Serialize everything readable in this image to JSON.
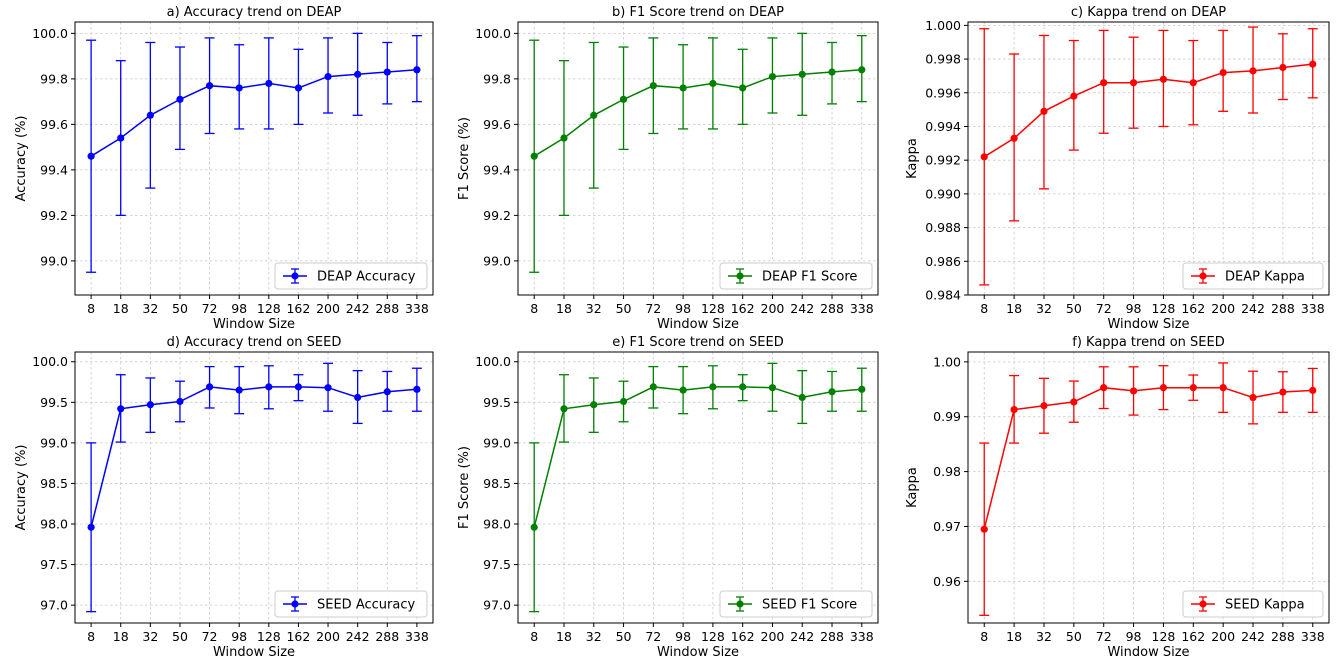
{
  "chart_data": [
    {
      "type": "line",
      "title": "a) Accuracy trend on DEAP",
      "xlabel": "Window Size",
      "ylabel": "Accuracy (%)",
      "categories": [
        "8",
        "18",
        "32",
        "50",
        "72",
        "98",
        "128",
        "162",
        "200",
        "242",
        "288",
        "338"
      ],
      "ylim": [
        98.85,
        100.05
      ],
      "yticks": [
        "99.0",
        "99.2",
        "99.4",
        "99.6",
        "99.8",
        "100.0"
      ],
      "yticks_values": [
        99.0,
        99.2,
        99.4,
        99.6,
        99.8,
        100.0
      ],
      "color": "#0000ff",
      "legend_position": "lower right",
      "grid": true,
      "series": [
        {
          "name": "DEAP Accuracy",
          "values": [
            99.46,
            99.54,
            99.64,
            99.71,
            99.77,
            99.76,
            99.78,
            99.76,
            99.81,
            99.82,
            99.83,
            99.84
          ],
          "lower": [
            98.95,
            99.2,
            99.32,
            99.49,
            99.56,
            99.58,
            99.58,
            99.6,
            99.65,
            99.64,
            99.69,
            99.7
          ],
          "upper": [
            99.97,
            99.88,
            99.96,
            99.94,
            99.98,
            99.95,
            99.98,
            99.93,
            99.98,
            100.0,
            99.96,
            99.99
          ]
        }
      ]
    },
    {
      "type": "line",
      "title": "b) F1 Score trend on DEAP",
      "xlabel": "Window Size",
      "ylabel": "F1 Score (%)",
      "categories": [
        "8",
        "18",
        "32",
        "50",
        "72",
        "98",
        "128",
        "162",
        "200",
        "242",
        "288",
        "338"
      ],
      "ylim": [
        98.85,
        100.05
      ],
      "yticks": [
        "99.0",
        "99.2",
        "99.4",
        "99.6",
        "99.8",
        "100.0"
      ],
      "yticks_values": [
        99.0,
        99.2,
        99.4,
        99.6,
        99.8,
        100.0
      ],
      "color": "#008000",
      "legend_position": "lower right",
      "grid": true,
      "series": [
        {
          "name": "DEAP F1 Score",
          "values": [
            99.46,
            99.54,
            99.64,
            99.71,
            99.77,
            99.76,
            99.78,
            99.76,
            99.81,
            99.82,
            99.83,
            99.84
          ],
          "lower": [
            98.95,
            99.2,
            99.32,
            99.49,
            99.56,
            99.58,
            99.58,
            99.6,
            99.65,
            99.64,
            99.69,
            99.7
          ],
          "upper": [
            99.97,
            99.88,
            99.96,
            99.94,
            99.98,
            99.95,
            99.98,
            99.93,
            99.98,
            100.0,
            99.96,
            99.99
          ]
        }
      ]
    },
    {
      "type": "line",
      "title": "c) Kappa trend on DEAP",
      "xlabel": "Window Size",
      "ylabel": "Kappa",
      "categories": [
        "8",
        "18",
        "32",
        "50",
        "72",
        "98",
        "128",
        "162",
        "200",
        "242",
        "288",
        "338"
      ],
      "ylim": [
        0.984,
        1.0002
      ],
      "yticks": [
        "0.984",
        "0.986",
        "0.988",
        "0.990",
        "0.992",
        "0.994",
        "0.996",
        "0.998",
        "1.000"
      ],
      "yticks_values": [
        0.984,
        0.986,
        0.988,
        0.99,
        0.992,
        0.994,
        0.996,
        0.998,
        1.0
      ],
      "color": "#ff0000",
      "legend_position": "lower right",
      "grid": true,
      "series": [
        {
          "name": "DEAP Kappa",
          "values": [
            0.9922,
            0.9933,
            0.9949,
            0.9958,
            0.9966,
            0.9966,
            0.9968,
            0.9966,
            0.9972,
            0.9973,
            0.9975,
            0.9977
          ],
          "lower": [
            0.9846,
            0.9884,
            0.9903,
            0.9926,
            0.9936,
            0.9939,
            0.994,
            0.9941,
            0.9949,
            0.9948,
            0.9956,
            0.9957
          ],
          "upper": [
            0.9998,
            0.9983,
            0.9994,
            0.9991,
            0.9997,
            0.9993,
            0.9997,
            0.9991,
            0.9997,
            0.9999,
            0.9995,
            0.9998
          ]
        }
      ]
    },
    {
      "type": "line",
      "title": "d) Accuracy trend on SEED",
      "xlabel": "Window Size",
      "ylabel": "Accuracy (%)",
      "categories": [
        "8",
        "18",
        "32",
        "50",
        "72",
        "98",
        "128",
        "162",
        "200",
        "242",
        "288",
        "338"
      ],
      "ylim": [
        96.78,
        100.12
      ],
      "yticks": [
        "97.0",
        "97.5",
        "98.0",
        "98.5",
        "99.0",
        "99.5",
        "100.0"
      ],
      "yticks_values": [
        97.0,
        97.5,
        98.0,
        98.5,
        99.0,
        99.5,
        100.0
      ],
      "color": "#0000ff",
      "legend_position": "lower right",
      "grid": true,
      "series": [
        {
          "name": "SEED Accuracy",
          "values": [
            97.96,
            99.42,
            99.47,
            99.51,
            99.69,
            99.65,
            99.69,
            99.69,
            99.68,
            99.56,
            99.63,
            99.66
          ],
          "lower": [
            96.92,
            99.01,
            99.13,
            99.26,
            99.43,
            99.36,
            99.42,
            99.52,
            99.39,
            99.24,
            99.39,
            99.39
          ],
          "upper": [
            99.0,
            99.84,
            99.8,
            99.76,
            99.94,
            99.94,
            99.95,
            99.84,
            99.98,
            99.89,
            99.88,
            99.92
          ]
        }
      ]
    },
    {
      "type": "line",
      "title": "e) F1 Score trend on SEED",
      "xlabel": "Window Size",
      "ylabel": "F1 Score (%)",
      "categories": [
        "8",
        "18",
        "32",
        "50",
        "72",
        "98",
        "128",
        "162",
        "200",
        "242",
        "288",
        "338"
      ],
      "ylim": [
        96.78,
        100.12
      ],
      "yticks": [
        "97.0",
        "97.5",
        "98.0",
        "98.5",
        "99.0",
        "99.5",
        "100.0"
      ],
      "yticks_values": [
        97.0,
        97.5,
        98.0,
        98.5,
        99.0,
        99.5,
        100.0
      ],
      "color": "#008000",
      "legend_position": "lower right",
      "grid": true,
      "series": [
        {
          "name": "SEED F1 Score",
          "values": [
            97.96,
            99.42,
            99.47,
            99.51,
            99.69,
            99.65,
            99.69,
            99.69,
            99.68,
            99.56,
            99.63,
            99.66
          ],
          "lower": [
            96.92,
            99.01,
            99.13,
            99.26,
            99.43,
            99.36,
            99.42,
            99.52,
            99.39,
            99.24,
            99.39,
            99.39
          ],
          "upper": [
            99.0,
            99.84,
            99.8,
            99.76,
            99.94,
            99.94,
            99.95,
            99.84,
            99.98,
            99.89,
            99.88,
            99.92
          ]
        }
      ]
    },
    {
      "type": "line",
      "title": "f) Kappa trend on SEED",
      "xlabel": "Window Size",
      "ylabel": "Kappa",
      "categories": [
        "8",
        "18",
        "32",
        "50",
        "72",
        "98",
        "128",
        "162",
        "200",
        "242",
        "288",
        "338"
      ],
      "ylim": [
        0.9524,
        1.0018
      ],
      "yticks": [
        "0.96",
        "0.97",
        "0.98",
        "0.99",
        "1.00"
      ],
      "yticks_values": [
        0.96,
        0.97,
        0.98,
        0.99,
        1.0
      ],
      "color": "#ff0000",
      "legend_position": "lower right",
      "grid": true,
      "series": [
        {
          "name": "SEED Kappa",
          "values": [
            0.9695,
            0.9913,
            0.992,
            0.9927,
            0.9953,
            0.9947,
            0.9953,
            0.9953,
            0.9953,
            0.9935,
            0.9945,
            0.9948
          ],
          "lower": [
            0.9538,
            0.9852,
            0.987,
            0.989,
            0.9915,
            0.9903,
            0.9913,
            0.993,
            0.9908,
            0.9887,
            0.9908,
            0.9908
          ],
          "upper": [
            0.9852,
            0.9975,
            0.997,
            0.9965,
            0.9991,
            0.9991,
            0.9993,
            0.9976,
            0.9998,
            0.9983,
            0.9982,
            0.9988
          ]
        }
      ]
    }
  ]
}
